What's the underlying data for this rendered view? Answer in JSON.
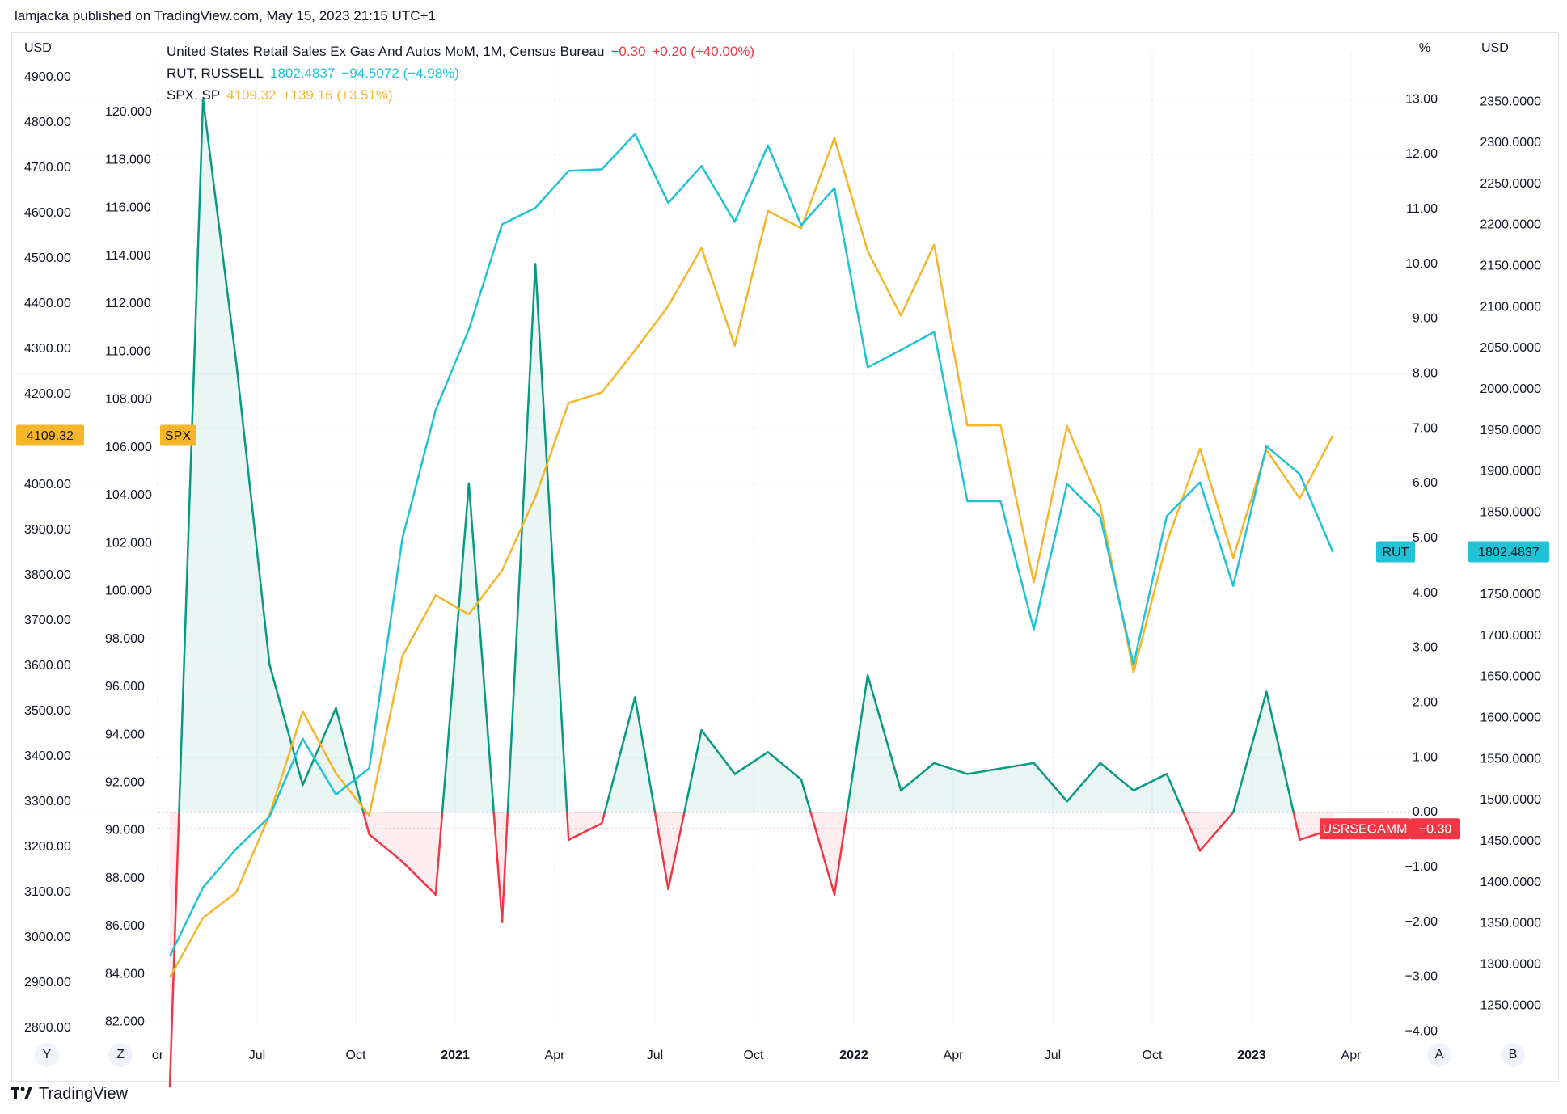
{
  "publisher": "lamjacka published on TradingView.com, May 15, 2023 21:15 UTC+1",
  "footer": {
    "brand": "TradingView",
    "icon": "tradingview-logo-icon"
  },
  "legend": {
    "retail": {
      "name": "United States Retail Sales Ex Gas And Autos MoM, 1M, Census Bureau",
      "value": "−0.30",
      "change": "+0.20 (+40.00%)"
    },
    "rut": {
      "name": "RUT, RUSSELL",
      "value": "1802.4837",
      "change": "−94.5072 (−4.98%)"
    },
    "spx": {
      "name": "SPX, SP",
      "value": "4109.32",
      "change": "+139.16 (+3.51%)"
    }
  },
  "buttons": {
    "y": "Y",
    "z": "Z",
    "a": "A",
    "b": "B"
  },
  "chart_data": {
    "type": "line",
    "colors": {
      "spx": "#f5b62b",
      "rut": "#22c2d6",
      "retail_up": "#089981",
      "retail_down": "#f23645",
      "label_spx": "#f5b62b",
      "label_rut": "#22c2d6",
      "label_retail": "#f23645"
    },
    "x_axis": {
      "ticks": [
        "or",
        "Jul",
        "Oct",
        "2021",
        "Apr",
        "Jul",
        "Oct",
        "2022",
        "Apr",
        "Jul",
        "Oct",
        "2023",
        "Apr"
      ],
      "bold_ticks": [
        "2021",
        "2022",
        "2023"
      ]
    },
    "axes": {
      "spx": {
        "unit_label": "USD",
        "range": [
          2750,
          4960
        ],
        "ticks": [
          "4900.00",
          "4800.00",
          "4700.00",
          "4600.00",
          "4500.00",
          "4400.00",
          "4300.00",
          "4200.00",
          "4000.00",
          "3900.00",
          "3800.00",
          "3700.00",
          "3600.00",
          "3500.00",
          "3400.00",
          "3300.00",
          "3200.00",
          "3100.00",
          "3000.00",
          "2900.00",
          "2800.00"
        ]
      },
      "left2": {
        "range": [
          80.8,
          122.6
        ],
        "ticks": [
          "120.000",
          "118.000",
          "116.000",
          "114.000",
          "112.000",
          "110.000",
          "108.000",
          "106.000",
          "104.000",
          "102.000",
          "100.000",
          "98.000",
          "96.000",
          "94.000",
          "92.000",
          "90.000",
          "88.000",
          "86.000",
          "84.000",
          "82.000"
        ]
      },
      "retail_pct": {
        "unit_label": "%",
        "range": [
          -4.35,
          13.9
        ],
        "ticks": [
          "13.00",
          "12.00",
          "11.00",
          "10.00",
          "9.00",
          "8.00",
          "7.00",
          "6.00",
          "5.00",
          "4.00",
          "3.00",
          "2.00",
          "1.00",
          "0.00",
          "−1.00",
          "−2.00",
          "−3.00",
          "−4.00"
        ]
      },
      "rut": {
        "unit_label": "USD",
        "range": [
          1195,
          2413
        ],
        "ticks": [
          "2350.0000",
          "2300.0000",
          "2250.0000",
          "2200.0000",
          "2150.0000",
          "2100.0000",
          "2050.0000",
          "2000.0000",
          "1950.0000",
          "1900.0000",
          "1850.0000",
          "1750.0000",
          "1700.0000",
          "1650.0000",
          "1600.0000",
          "1550.0000",
          "1500.0000",
          "1450.0000",
          "1400.0000",
          "1350.0000",
          "1300.0000",
          "1250.0000"
        ]
      }
    },
    "months": [
      "2020-04",
      "2020-05",
      "2020-06",
      "2020-07",
      "2020-08",
      "2020-09",
      "2020-10",
      "2020-11",
      "2020-12",
      "2021-01",
      "2021-02",
      "2021-03",
      "2021-04",
      "2021-05",
      "2021-06",
      "2021-07",
      "2021-08",
      "2021-09",
      "2021-10",
      "2021-11",
      "2021-12",
      "2022-01",
      "2022-02",
      "2022-03",
      "2022-04",
      "2022-05",
      "2022-06",
      "2022-07",
      "2022-08",
      "2022-09",
      "2022-10",
      "2022-11",
      "2022-12",
      "2023-01",
      "2023-02",
      "2023-03",
      "2023-04"
    ],
    "series": [
      {
        "name": "SPX",
        "axis": "spx",
        "values": [
          2912,
          3044,
          3100,
          3271,
          3500,
          3363,
          3270,
          3622,
          3756,
          3714,
          3811,
          3973,
          4181,
          4204,
          4297,
          4395,
          4523,
          4307,
          4605,
          4567,
          4766,
          4516,
          4374,
          4530,
          4131,
          4132,
          3785,
          4130,
          3955,
          3586,
          3872,
          4080,
          3839,
          4077,
          3970,
          4109,
          null
        ]
      },
      {
        "name": "RUT",
        "axis": "rut",
        "values": [
          1310,
          1394,
          1441,
          1480,
          1575,
          1507,
          1539,
          1819,
          1975,
          2073,
          2201,
          2221,
          2266,
          2268,
          2311,
          2227,
          2272,
          2204,
          2297,
          2200,
          2245,
          2027,
          2048,
          2070,
          1864,
          1864,
          1708,
          1885,
          1845,
          1665,
          1846,
          1887,
          1761,
          1931,
          1897,
          1802,
          null
        ]
      },
      {
        "name": "USRSEGAMM",
        "axis": "retail_pct",
        "values": [
          -5.0,
          13.0,
          8.2,
          2.7,
          0.5,
          1.9,
          -0.4,
          -0.9,
          -1.5,
          6.0,
          -2.0,
          10.0,
          -0.5,
          -0.2,
          2.1,
          -1.4,
          1.5,
          0.7,
          1.1,
          0.6,
          -1.5,
          2.5,
          0.4,
          0.9,
          0.7,
          0.8,
          0.9,
          0.2,
          0.9,
          0.4,
          0.7,
          -0.7,
          0.0,
          2.2,
          -0.5,
          -0.3,
          null
        ]
      }
    ],
    "price_labels": {
      "spx": {
        "value": "4109.32",
        "tag": "SPX"
      },
      "rut": {
        "value": "1802.4837",
        "tag": "RUT"
      },
      "retail": {
        "value": "−0.30",
        "tag": "USRSEGAMM"
      }
    },
    "retail_zero_line": 0.0,
    "retail_last_line": -0.3
  }
}
